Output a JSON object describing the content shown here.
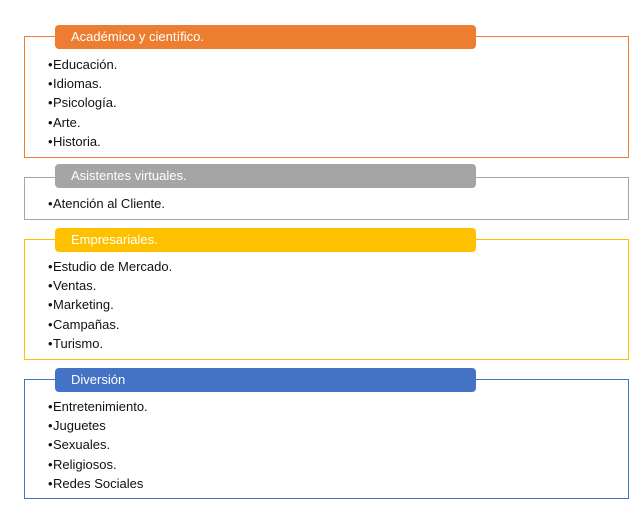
{
  "groups": [
    {
      "title": "Académico y científico.",
      "color": "#ED7D31",
      "items": [
        "Educación.",
        "Idiomas.",
        "Psicología.",
        "Arte.",
        "Historia."
      ]
    },
    {
      "title": "Asistentes virtuales.",
      "color": "#A5A5A5",
      "items": [
        "Atención al Cliente."
      ]
    },
    {
      "title": "Empresariales.",
      "color": "#FFC000",
      "items": [
        "Estudio de Mercado.",
        "Ventas.",
        "Marketing.",
        "Campañas.",
        "Turismo."
      ]
    },
    {
      "title": "Diversión",
      "color": "#4472C4",
      "items": [
        "Entretenimiento.",
        "Juguetes",
        "Sexuales.",
        "Religiosos.",
        "Redes Sociales"
      ]
    }
  ]
}
